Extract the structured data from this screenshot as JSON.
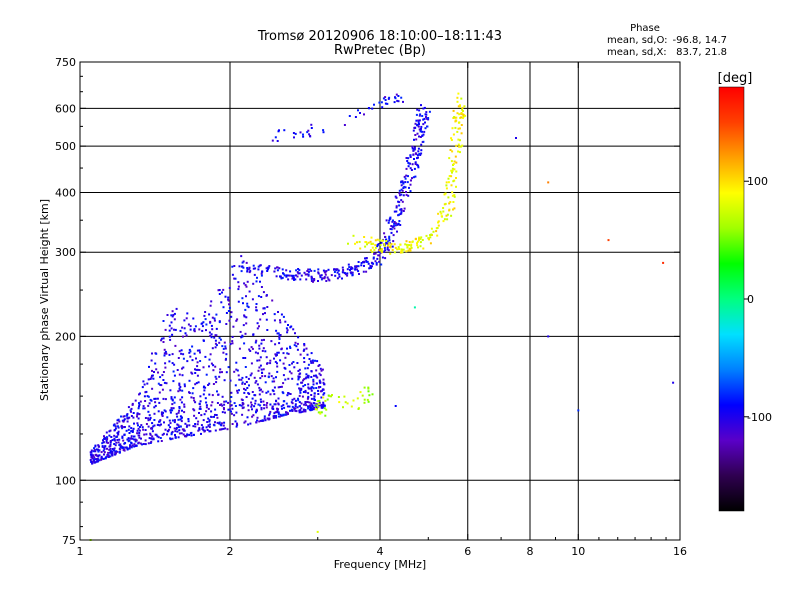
{
  "chart_data": {
    "type": "scatter",
    "title": "Tromsø 20120906 18:10:00–18:11:43",
    "subtitle": "RwPretec (Bp)",
    "xlabel": "Frequency [MHz]",
    "ylabel": "Stationary phase Virtual Height [km]",
    "x_scale": "log",
    "y_scale": "log",
    "xlim": [
      1,
      16
    ],
    "ylim": [
      75,
      750
    ],
    "x_ticks": [
      1,
      2,
      4,
      6,
      8,
      10,
      16
    ],
    "x_tick_labels": [
      "1",
      "2",
      "4",
      "6",
      "8",
      "10",
      "16"
    ],
    "y_ticks": [
      75,
      100,
      200,
      300,
      400,
      500,
      600,
      750
    ],
    "y_tick_labels": [
      "75",
      "100",
      "200",
      "300",
      "400",
      "500",
      "600",
      "750"
    ],
    "grid": true,
    "stats": {
      "title": "Phase",
      "o_label": "mean, sd,O:",
      "o_values": "-96.8, 14.7",
      "x_label": "mean, sd,X:",
      "x_values": "83.7, 21.8"
    },
    "colorbar": {
      "label": "[deg]",
      "range": [
        -180,
        180
      ],
      "ticks": [
        100,
        0,
        -100
      ],
      "tick_labels": [
        "100",
        "0",
        "-100"
      ],
      "colors": [
        "#000000",
        "#2f0050",
        "#5a00c8",
        "#0000ff",
        "#0080ff",
        "#00e0ff",
        "#00ff80",
        "#00ff00",
        "#a0ff00",
        "#ffff00",
        "#ffa000",
        "#ff4000",
        "#ff0000"
      ]
    },
    "series": [
      {
        "trace": "o_low_band",
        "f_range": [
          1.05,
          3.1
        ],
        "h_base": [
          [
            1.05,
            108
          ],
          [
            1.3,
            118
          ],
          [
            1.6,
            123
          ],
          [
            2.0,
            128
          ],
          [
            2.6,
            137
          ],
          [
            3.1,
            142
          ]
        ],
        "h_top": [
          [
            1.05,
            115
          ],
          [
            1.3,
            150
          ],
          [
            1.5,
            230
          ],
          [
            1.8,
            230
          ],
          [
            2.1,
            300
          ],
          [
            2.5,
            230
          ],
          [
            3.1,
            170
          ]
        ],
        "phase_deg": -100,
        "count": 1400
      },
      {
        "trace": "o_f_trace",
        "points": [
          [
            2.1,
            280
          ],
          [
            2.5,
            272
          ],
          [
            2.9,
            268
          ],
          [
            3.3,
            270
          ],
          [
            3.7,
            280
          ],
          [
            4.0,
            295
          ],
          [
            4.2,
            330
          ],
          [
            4.4,
            380
          ],
          [
            4.6,
            440
          ],
          [
            4.8,
            520
          ],
          [
            4.9,
            600
          ]
        ],
        "phase_deg": -100,
        "count": 420
      },
      {
        "trace": "x_f_trace",
        "points": [
          [
            3.5,
            318
          ],
          [
            4.2,
            305
          ],
          [
            4.7,
            310
          ],
          [
            5.2,
            330
          ],
          [
            5.5,
            380
          ],
          [
            5.65,
            460
          ],
          [
            5.75,
            560
          ],
          [
            5.8,
            630
          ]
        ],
        "phase_deg": 90,
        "count": 220
      },
      {
        "trace": "x_low_band",
        "points": [
          [
            3.05,
            140
          ],
          [
            3.1,
            148
          ],
          [
            3.6,
            145
          ],
          [
            3.8,
            155
          ]
        ],
        "phase_deg": 70,
        "count": 45
      },
      {
        "trace": "o_upper_cluster",
        "points": [
          [
            2.45,
            525
          ],
          [
            2.7,
            535
          ],
          [
            3.0,
            540
          ],
          [
            3.4,
            560
          ],
          [
            3.6,
            580
          ],
          [
            4.1,
            620
          ],
          [
            4.4,
            640
          ]
        ],
        "phase_deg": -100,
        "count": 50
      },
      {
        "trace": "scattered",
        "points": [
          [
            7.5,
            520
          ],
          [
            8.7,
            420
          ],
          [
            11.5,
            318
          ],
          [
            14.8,
            285
          ],
          [
            8.7,
            200
          ],
          [
            4.7,
            230
          ],
          [
            10.0,
            140
          ],
          [
            15.5,
            160
          ],
          [
            1.05,
            75
          ],
          [
            3.0,
            78
          ],
          [
            4.3,
            143
          ]
        ],
        "phase_deg": [
          -100,
          130,
          150,
          160,
          -100,
          -10,
          -80,
          -100,
          60,
          80,
          -90
        ]
      }
    ]
  }
}
